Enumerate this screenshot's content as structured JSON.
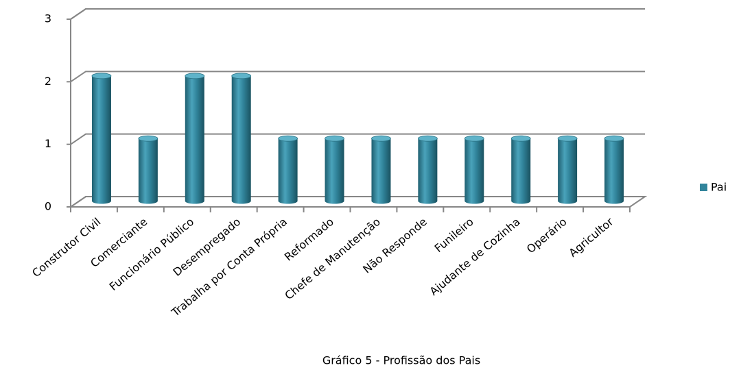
{
  "chart_data": {
    "type": "bar3d",
    "title": "Gráfico 5 - Profissão dos Pais",
    "categories": [
      "Construtor Civil",
      "Comerciante",
      "Funcionário Público",
      "Desempregado",
      "Trabalha por Conta Própria",
      "Reformado",
      "Chefe de Manutenção",
      "Não Responde",
      "Funileiro",
      "Ajudante de Cozinha",
      "Operário",
      "Agricultor"
    ],
    "series": [
      {
        "name": "Pai",
        "color": "#31849b",
        "values": [
          2,
          1,
          2,
          2,
          1,
          1,
          1,
          1,
          1,
          1,
          1,
          1
        ]
      }
    ],
    "ylim": [
      0,
      3
    ],
    "yticks": [
      0,
      1,
      2,
      3
    ],
    "grid": true,
    "legend": "right"
  }
}
